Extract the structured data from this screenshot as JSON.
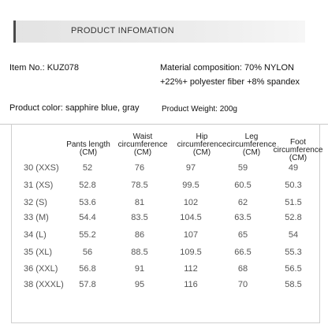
{
  "header": {
    "title": "PRODUCT INFOMATION"
  },
  "info": {
    "item_no_label": "Item No.:",
    "item_no_value": "KUZ078",
    "material_line1": "Material composition: 70% NYLON",
    "material_line2": "+22%+ polyester fiber +8% spandex",
    "color_label": "Product color:",
    "color_value": "sapphire blue, gray",
    "weight_label": "Product Weight:",
    "weight_value": "200g"
  },
  "table": {
    "headers": [
      {
        "line1": "Pants length",
        "line2": "(CM)"
      },
      {
        "line1": "Waist",
        "line2": "circumference",
        "line3": "(CM)"
      },
      {
        "line1": "Hip",
        "line2": "circumference",
        "line3": "(CM)"
      },
      {
        "line1": "Leg",
        "line2": "circumference",
        "line3": "(CM)"
      },
      {
        "line1": "Foot",
        "line2": "circumference",
        "line3": "(CM)"
      }
    ],
    "rows": [
      {
        "size": "30 (XXS)",
        "values": [
          "52",
          "76",
          "97",
          "59",
          "49"
        ]
      },
      {
        "size": "31 (XS)",
        "values": [
          "52.8",
          "78.5",
          "99.5",
          "60.5",
          "50.3"
        ]
      },
      {
        "size": "32 (S)",
        "values": [
          "53.6",
          "81",
          "102",
          "62",
          "51.5"
        ]
      },
      {
        "size": "33 (M)",
        "values": [
          "54.4",
          "83.5",
          "104.5",
          "63.5",
          "52.8"
        ]
      },
      {
        "size": "34 (L)",
        "values": [
          "55.2",
          "86",
          "107",
          "65",
          "54"
        ]
      },
      {
        "size": "35 (XL)",
        "values": [
          "56",
          "88.5",
          "109.5",
          "66.5",
          "55.3"
        ]
      },
      {
        "size": "36 (XXL)",
        "values": [
          "56.8",
          "91",
          "112",
          "68",
          "56.5"
        ]
      },
      {
        "size": "38 (XXXL)",
        "values": [
          "57.8",
          "95",
          "116",
          "70",
          "58.5"
        ]
      }
    ]
  }
}
